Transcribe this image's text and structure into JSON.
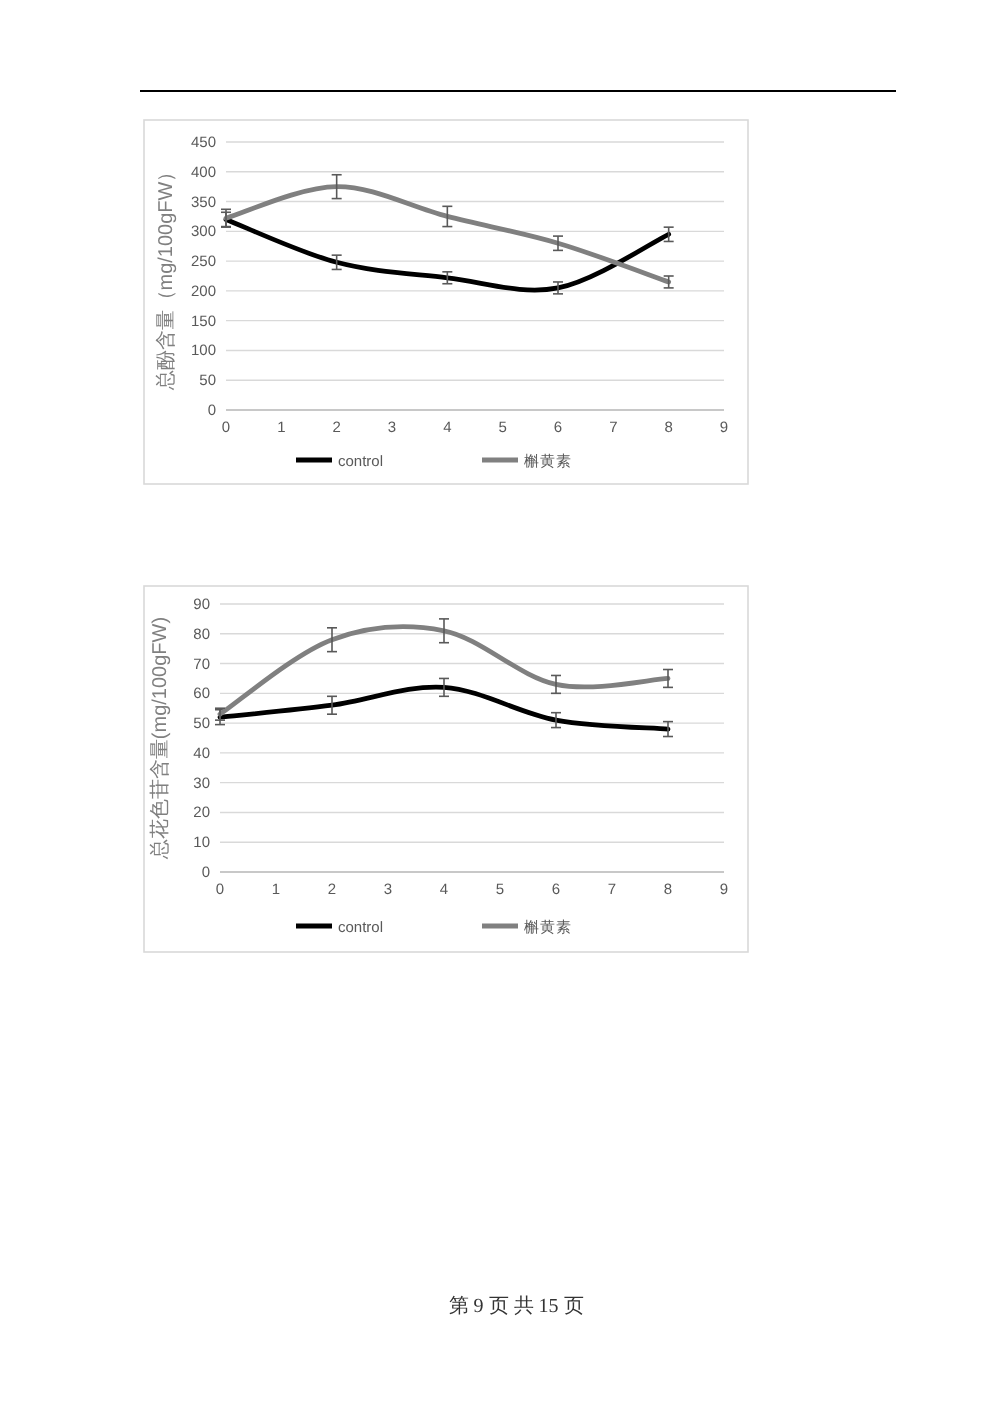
{
  "chart_data": [
    {
      "type": "line",
      "ylabel": "总酚含量（mg/100gFW）",
      "x": [
        0,
        2,
        4,
        6,
        8
      ],
      "xlim": [
        0,
        9
      ],
      "xticks": [
        0,
        1,
        2,
        3,
        4,
        5,
        6,
        7,
        8,
        9
      ],
      "ylim": [
        0,
        450
      ],
      "yticks": [
        0,
        50,
        100,
        150,
        200,
        250,
        300,
        350,
        400,
        450
      ],
      "grid": "y",
      "legend": "bottom",
      "marker": "none",
      "line_style": "solid",
      "series": [
        {
          "name": "control",
          "color": "#000000",
          "values": [
            320,
            248,
            222,
            205,
            295
          ],
          "errors": [
            12,
            12,
            10,
            10,
            12
          ]
        },
        {
          "name": "槲黄素",
          "color": "#808080",
          "values": [
            322,
            375,
            325,
            280,
            215
          ],
          "errors": [
            15,
            20,
            17,
            12,
            10
          ]
        }
      ]
    },
    {
      "type": "line",
      "ylabel": "总花色苷含量(mg/100gFW)",
      "x": [
        0,
        2,
        4,
        6,
        8
      ],
      "xlim": [
        0,
        9
      ],
      "xticks": [
        0,
        1,
        2,
        3,
        4,
        5,
        6,
        7,
        8,
        9
      ],
      "ylim": [
        0,
        90
      ],
      "yticks": [
        0,
        10,
        20,
        30,
        40,
        50,
        60,
        70,
        80,
        90
      ],
      "grid": "y",
      "legend": "bottom",
      "marker": "none",
      "line_style": "solid",
      "series": [
        {
          "name": "control",
          "color": "#000000",
          "values": [
            52,
            56,
            62,
            51,
            48
          ],
          "errors": [
            2.5,
            3,
            3,
            2.5,
            2.5
          ]
        },
        {
          "name": "槲黄素",
          "color": "#808080",
          "values": [
            53,
            78,
            81,
            63,
            65
          ],
          "errors": [
            2,
            4,
            4,
            3,
            3
          ]
        }
      ]
    },
    {
      "type": "other",
      "annotations": [
        "第 9 页 共 15 页"
      ]
    }
  ]
}
